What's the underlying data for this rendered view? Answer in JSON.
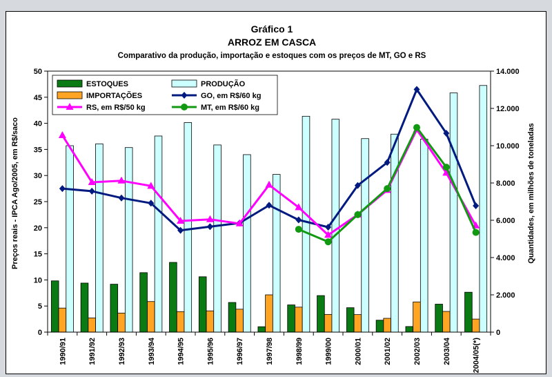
{
  "chart_data": {
    "type": "bar",
    "title": "Gráfico 1",
    "subtitle": "ARROZ EM CASCA",
    "subtitle2": "Comparativo da produção, importação e estoques com os preços de MT, GO e RS",
    "ylabel_left": "Preços reais - IPCA Ago/2005, em R$/saco",
    "ylabel_right": "Quantidades, em milhões de toneladas",
    "ylim_left": [
      0,
      50
    ],
    "ylim_right": [
      0,
      14000
    ],
    "yticks_left": [
      "0",
      "5",
      "10",
      "15",
      "20",
      "25",
      "30",
      "35",
      "40",
      "45",
      "50"
    ],
    "yticks_right": [
      "0",
      "2.000",
      "4.000",
      "6.000",
      "8.000",
      "10.000",
      "12.000",
      "14.000"
    ],
    "categories": [
      "1990/91",
      "1991/92",
      "1992/93",
      "1993/94",
      "1994/95",
      "1995/96",
      "1996/97",
      "1997/98",
      "1998/99",
      "1999/00",
      "2000/01",
      "2001/02",
      "2002/03",
      "2003/04",
      "2004/05(*)"
    ],
    "grid": false,
    "legend_position": "top",
    "bar_series": [
      {
        "name": "ESTOQUES",
        "axis": "right",
        "color": "#0a7a12",
        "values": [
          2750,
          2630,
          2570,
          3190,
          3740,
          2970,
          1590,
          290,
          1460,
          1960,
          1310,
          640,
          300,
          1500,
          2140
        ]
      },
      {
        "name": "IMPORTAÇÕES",
        "axis": "right",
        "color": "#ffa523",
        "values": [
          1290,
          760,
          1020,
          1640,
          1100,
          1140,
          1230,
          2000,
          1340,
          950,
          940,
          740,
          1620,
          1110,
          700
        ]
      },
      {
        "name": "PRODUÇÃO",
        "axis": "right",
        "color": "#ccffff",
        "values": [
          10000,
          10100,
          9900,
          10520,
          11240,
          10040,
          9520,
          8460,
          11580,
          11420,
          10380,
          10620,
          10350,
          12830,
          13230
        ]
      }
    ],
    "line_series": [
      {
        "name": "GO, em R$/60 kg",
        "axis": "left",
        "color": "#001a80",
        "marker": "diamond",
        "values": [
          27.5,
          27,
          25.7,
          24.7,
          19.5,
          20.2,
          20.9,
          24.3,
          21.5,
          20.1,
          28.1,
          32.5,
          46.5,
          38.1,
          24.2
        ]
      },
      {
        "name": "RS, em R$/50 kg",
        "axis": "left",
        "color": "#ff00ff",
        "marker": "triangle",
        "values": [
          37.7,
          28.7,
          29,
          28,
          21.3,
          21.6,
          20.8,
          28.2,
          23.9,
          18.6,
          22.5,
          27.2,
          38.8,
          30.5,
          20.4
        ]
      },
      {
        "name": "MT, em R$/60 kg",
        "axis": "left",
        "color": "#119911",
        "marker": "circle",
        "values": [
          null,
          null,
          null,
          null,
          null,
          null,
          null,
          null,
          19.7,
          17.3,
          22.5,
          27.5,
          39.2,
          31.6,
          19.1
        ]
      }
    ]
  }
}
